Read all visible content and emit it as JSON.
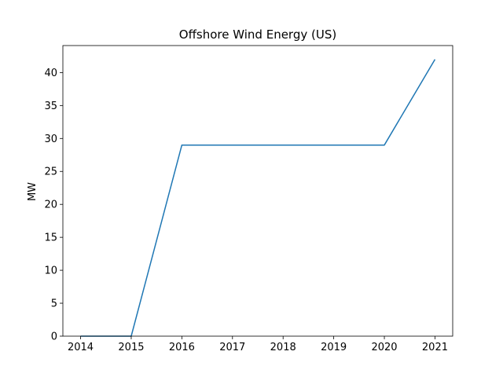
{
  "chart_data": {
    "type": "line",
    "title": "Offshore Wind Energy (US)",
    "xlabel": "",
    "ylabel": "MW",
    "x": [
      2014,
      2015,
      2016,
      2017,
      2018,
      2019,
      2020,
      2021
    ],
    "series": [
      {
        "values": [
          0,
          0,
          29,
          29,
          29,
          29,
          29,
          42
        ],
        "color": "#1f77b4"
      }
    ],
    "xlim": [
      2013.65,
      2021.35
    ],
    "ylim": [
      0,
      44.1
    ],
    "xticks": [
      "2014",
      "2015",
      "2016",
      "2017",
      "2018",
      "2019",
      "2020",
      "2021"
    ],
    "yticks": [
      0,
      5,
      10,
      15,
      20,
      25,
      30,
      35,
      40
    ],
    "grid": false,
    "legend": "none"
  }
}
